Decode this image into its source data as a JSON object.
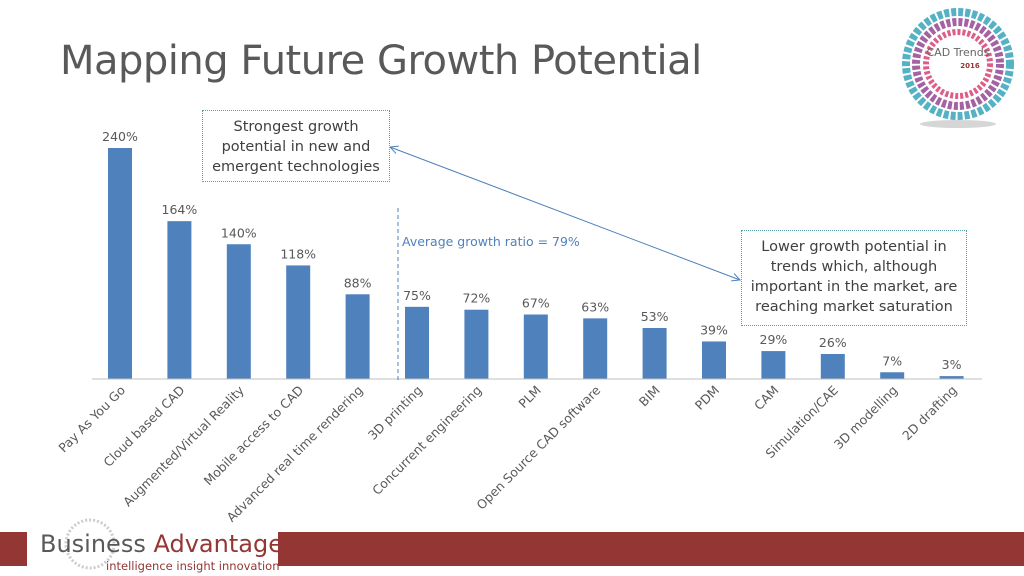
{
  "title": "Mapping Future Growth Potential",
  "logo_cad": {
    "text": "CAD Trends",
    "year": "2016"
  },
  "footer": {
    "brand_part1": "Business",
    "brand_part2": "Advantage",
    "tagline": "intelligence  insight  innovation"
  },
  "colors": {
    "bar": "#4f81bd",
    "annotation": "#4f81bd",
    "footer": "#943634",
    "text": "#595959"
  },
  "annotations": {
    "strong_box": [
      "Strongest  growth",
      "potential in new and",
      "emergent technologies"
    ],
    "lower_box": [
      "Lower growth potential in",
      "trends which, although",
      "important in the market, are",
      "reaching market saturation"
    ],
    "average_label": "Average growth ratio = 79%"
  },
  "chart_data": {
    "type": "bar",
    "title": "Mapping Future Growth Potential",
    "xlabel": "",
    "ylabel": "",
    "ylim": [
      0,
      240
    ],
    "grid": false,
    "categories": [
      "Pay As You Go",
      "Cloud based CAD",
      "Augmented/Virtual Reality",
      "Mobile access to CAD",
      "Advanced real time rendering",
      "3D printing",
      "Concurrent engineering",
      "PLM",
      "Open Source CAD software",
      "BIM",
      "PDM",
      "CAM",
      "Simulation/CAE",
      "3D modelling",
      "2D drafting"
    ],
    "values": [
      240,
      164,
      140,
      118,
      88,
      75,
      72,
      67,
      63,
      53,
      39,
      29,
      26,
      7,
      3
    ],
    "data_labels": [
      "240%",
      "164%",
      "140%",
      "118%",
      "88%",
      "75%",
      "72%",
      "67%",
      "63%",
      "53%",
      "39%",
      "29%",
      "26%",
      "7%",
      "3%"
    ],
    "average": 79
  }
}
